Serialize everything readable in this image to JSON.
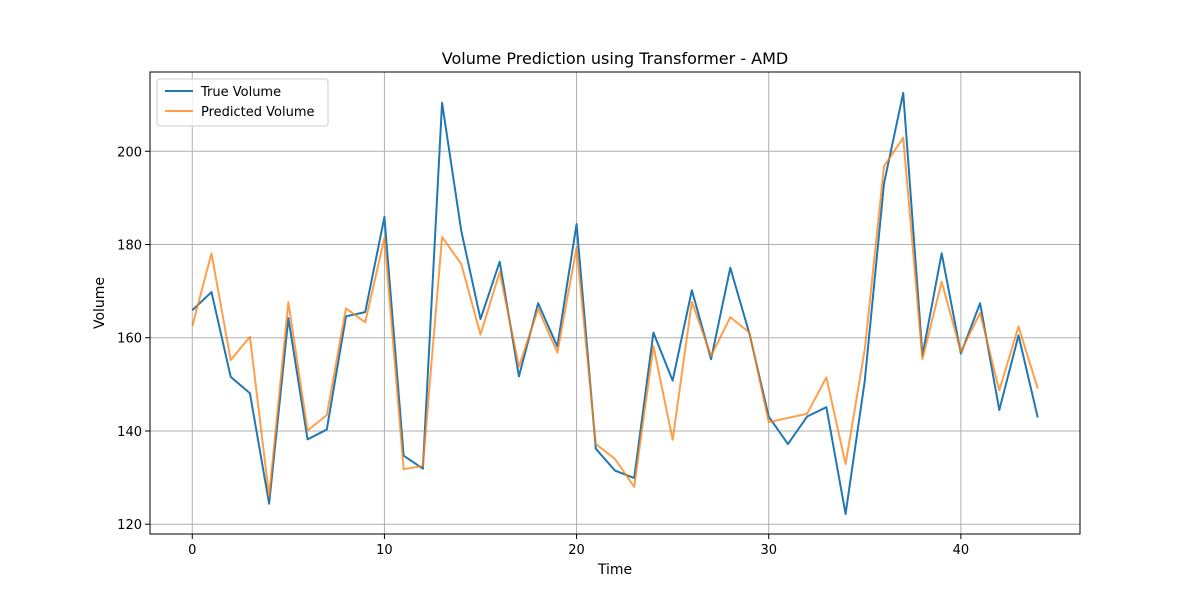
{
  "chart_data": {
    "type": "line",
    "title": "Volume Prediction using Transformer - AMD",
    "xlabel": "Time",
    "ylabel": "Volume",
    "xlim": [
      -2.2,
      46.2
    ],
    "ylim": [
      117.9,
      217.0
    ],
    "xticks": [
      0,
      10,
      20,
      30,
      40
    ],
    "yticks": [
      120,
      140,
      160,
      180,
      200
    ],
    "grid": true,
    "legend_position": "upper-left",
    "x": [
      0,
      1,
      2,
      3,
      4,
      5,
      6,
      7,
      8,
      9,
      10,
      11,
      12,
      13,
      14,
      15,
      16,
      17,
      18,
      19,
      20,
      21,
      22,
      23,
      24,
      25,
      26,
      27,
      28,
      29,
      30,
      31,
      32,
      33,
      34,
      35,
      36,
      37,
      38,
      39,
      40,
      41,
      42,
      43,
      44
    ],
    "series": [
      {
        "name": "True Volume",
        "color": "#1f77b4",
        "values": [
          165.9,
          169.8,
          151.6,
          148.1,
          124.4,
          164.2,
          138.2,
          140.3,
          164.6,
          165.5,
          185.9,
          134.7,
          131.9,
          210.4,
          182.9,
          164.0,
          176.3,
          151.7,
          167.4,
          158.1,
          184.4,
          136.2,
          131.5,
          129.9,
          161.1,
          150.8,
          170.2,
          155.4,
          175.0,
          160.8,
          143.1,
          137.2,
          143.1,
          145.1,
          122.2,
          150.8,
          193.1,
          212.5,
          156.2,
          178.1,
          156.6,
          167.4,
          144.5,
          160.5,
          142.9
        ]
      },
      {
        "name": "Predicted Volume",
        "color": "#ff7f0e",
        "values": [
          162.5,
          178.1,
          155.2,
          160.2,
          126.0,
          167.6,
          140.1,
          143.4,
          166.3,
          163.3,
          181.4,
          131.8,
          132.5,
          181.6,
          175.8,
          160.7,
          174.1,
          153.8,
          166.2,
          156.8,
          179.4,
          137.2,
          134.0,
          128.0,
          158.2,
          138.1,
          167.7,
          156.1,
          164.4,
          161.1,
          141.9,
          142.8,
          143.7,
          151.5,
          132.9,
          157.5,
          196.8,
          202.9,
          155.4,
          172.0,
          157.0,
          165.3,
          148.7,
          162.4,
          149.1
        ]
      }
    ]
  }
}
